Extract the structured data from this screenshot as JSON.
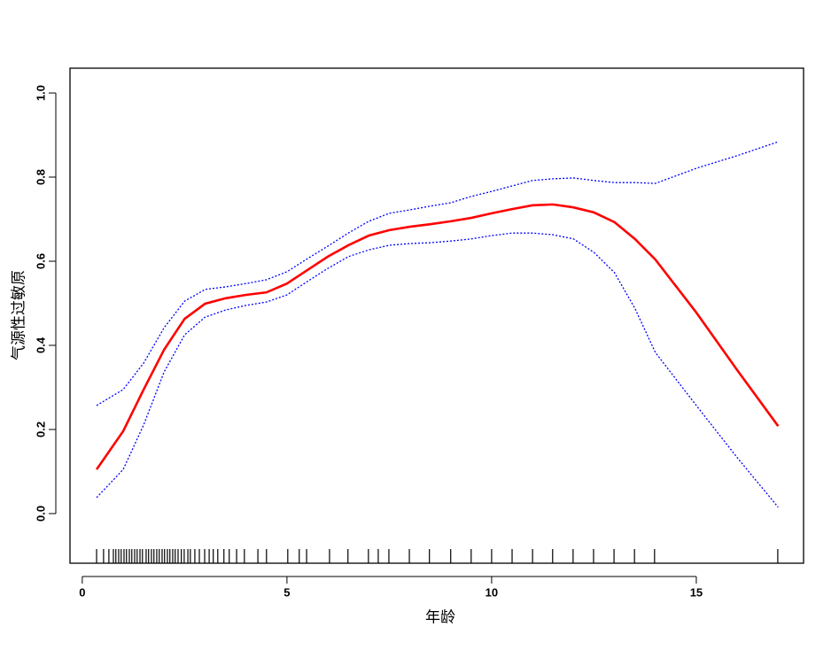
{
  "chart_data": {
    "type": "line",
    "xlabel": "年龄",
    "ylabel": "气源性过敏原",
    "x": [
      0.35,
      1,
      1.5,
      2,
      2.5,
      3,
      3.5,
      4,
      4.5,
      5,
      5.5,
      6,
      6.5,
      7,
      7.5,
      8,
      8.5,
      9,
      9.5,
      10,
      10.5,
      11,
      11.5,
      12,
      12.5,
      13,
      13.5,
      14,
      15,
      16,
      17
    ],
    "series": [
      {
        "color": "#ff0000",
        "dashed": false,
        "values": [
          0.105,
          0.196,
          0.295,
          0.39,
          0.463,
          0.499,
          0.512,
          0.52,
          0.526,
          0.547,
          0.579,
          0.611,
          0.638,
          0.661,
          0.674,
          0.682,
          0.688,
          0.695,
          0.703,
          0.714,
          0.724,
          0.733,
          0.735,
          0.728,
          0.716,
          0.693,
          0.653,
          0.604,
          0.478,
          0.341,
          0.208
        ]
      },
      {
        "color": "#0000ff",
        "dashed": true,
        "values": [
          0.257,
          0.295,
          0.358,
          0.442,
          0.505,
          0.533,
          0.539,
          0.547,
          0.556,
          0.575,
          0.606,
          0.636,
          0.667,
          0.695,
          0.714,
          0.722,
          0.731,
          0.739,
          0.754,
          0.766,
          0.779,
          0.792,
          0.796,
          0.798,
          0.792,
          0.787,
          0.787,
          0.785,
          0.821,
          0.851,
          0.884
        ]
      },
      {
        "color": "#0000ff",
        "dashed": true,
        "values": [
          0.038,
          0.105,
          0.211,
          0.337,
          0.425,
          0.467,
          0.484,
          0.495,
          0.503,
          0.52,
          0.552,
          0.583,
          0.611,
          0.627,
          0.638,
          0.642,
          0.644,
          0.648,
          0.653,
          0.661,
          0.667,
          0.667,
          0.663,
          0.653,
          0.621,
          0.573,
          0.488,
          0.383,
          0.257,
          0.133,
          0.015
        ]
      }
    ],
    "rug": [
      0.35,
      0.52,
      0.65,
      0.76,
      0.82,
      0.89,
      0.95,
      1.02,
      1.08,
      1.15,
      1.21,
      1.28,
      1.34,
      1.41,
      1.47,
      1.56,
      1.62,
      1.69,
      1.75,
      1.82,
      1.88,
      1.95,
      2.01,
      2.08,
      2.14,
      2.21,
      2.27,
      2.34,
      2.42,
      2.49,
      2.58,
      2.64,
      2.75,
      2.86,
      2.99,
      3.1,
      3.2,
      3.31,
      3.46,
      3.59,
      3.77,
      3.96,
      4.29,
      4.5,
      5.02,
      5.3,
      5.48,
      6.04,
      6.49,
      6.99,
      7.23,
      7.49,
      7.99,
      8.48,
      9.0,
      9.5,
      10,
      10.5,
      11,
      11.49,
      11.99,
      12.49,
      12.99,
      13.49,
      13.98,
      16.99
    ],
    "xlim": [
      -0.3,
      17.62
    ],
    "ylim": [
      -0.118,
      1.059
    ],
    "xticks": [
      0,
      5,
      10,
      15
    ],
    "yticks": [
      {
        "value": 0,
        "label": "0.0"
      },
      0.2,
      0.4,
      0.6,
      0.8,
      {
        "value": 1,
        "label": "1.0"
      }
    ]
  }
}
